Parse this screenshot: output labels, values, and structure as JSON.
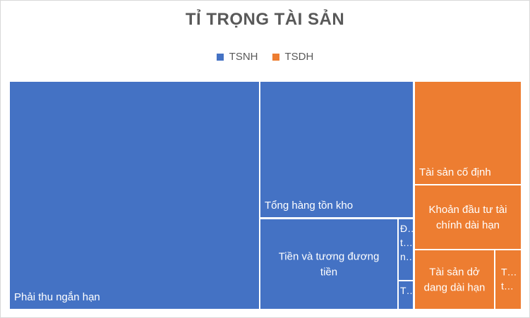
{
  "chart_data": {
    "type": "treemap",
    "title": "TỈ TRỌNG TÀI SẢN",
    "legend": {
      "placement": "top",
      "items": [
        {
          "name": "TSNH",
          "color": "#4472c4"
        },
        {
          "name": "TSDH",
          "color": "#ed7d31"
        }
      ]
    },
    "cells": [
      {
        "series": "TSNH",
        "label": [
          "Phải thu ngắn hạn"
        ],
        "value": 45.0
      },
      {
        "series": "TSNH",
        "label": [
          "Tổng hàng tồn kho"
        ],
        "value": 14.5
      },
      {
        "series": "TSNH",
        "label": [
          "Tiền và tương đương",
          "tiền"
        ],
        "value": 12.0
      },
      {
        "series": "TSNH",
        "label": [
          "Đ…",
          "t…",
          "n…"
        ],
        "value": 1.3
      },
      {
        "series": "TSNH",
        "label": [
          "T…"
        ],
        "value": 0.5
      },
      {
        "series": "TSDH",
        "label": [
          "Tài sản cố định"
        ],
        "value": 11.5
      },
      {
        "series": "TSDH",
        "label": [
          "Khoản đầu tư tài",
          "chính dài hạn"
        ],
        "value": 7.2
      },
      {
        "series": "TSDH",
        "label": [
          "Tài sản dở",
          "dang dài hạn"
        ],
        "value": 6.0
      },
      {
        "series": "TSDH",
        "label": [
          "T…",
          "t…"
        ],
        "value": 2.0
      }
    ]
  }
}
